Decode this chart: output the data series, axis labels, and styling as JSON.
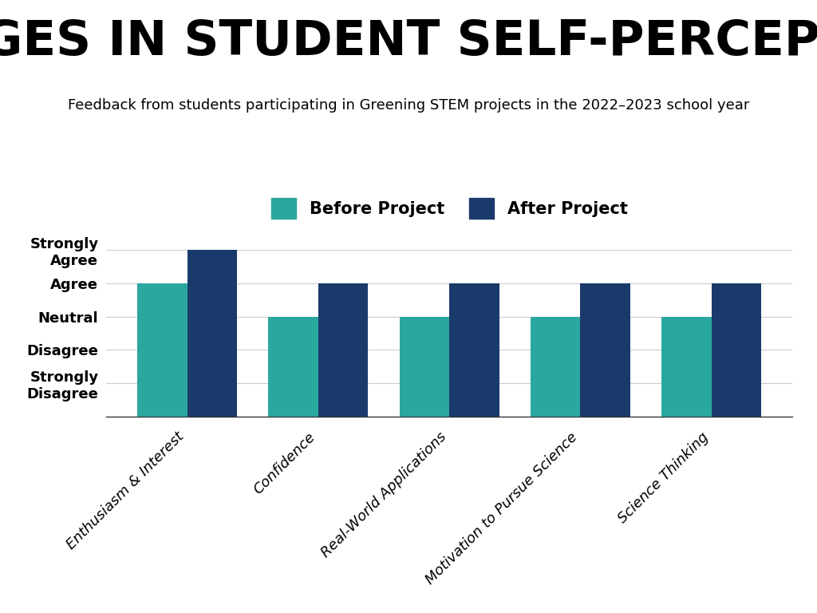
{
  "title": "CHANGES IN STUDENT SELF-PERCEPTIONS",
  "subtitle": "Feedback from students participating in Greening STEM projects in the 2022–2023 school year",
  "categories": [
    "Enthusiasm & Interest",
    "Confidence",
    "Real-World Applications",
    "Motivation to Pursue Science",
    "Science Thinking"
  ],
  "before_values": [
    4,
    3,
    3,
    3,
    3
  ],
  "after_values": [
    5,
    4,
    4,
    4,
    4
  ],
  "ytick_labels": [
    "Strongly\nDisagree",
    "Disagree",
    "Neutral",
    "Agree",
    "Strongly\nAgree"
  ],
  "ytick_values": [
    1,
    2,
    3,
    4,
    5
  ],
  "ylim": [
    0,
    5.5
  ],
  "before_color": "#2aa8a0",
  "after_color": "#1a3a6b",
  "legend_labels": [
    "Before Project",
    "After Project"
  ],
  "background_color": "#ffffff",
  "title_fontsize": 44,
  "subtitle_fontsize": 13,
  "bar_width": 0.38,
  "grid_color": "#cccccc"
}
